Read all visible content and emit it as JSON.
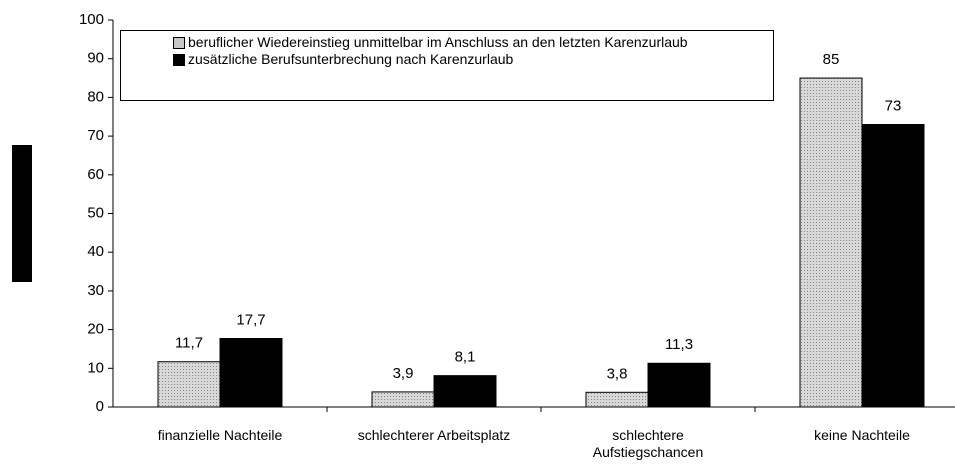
{
  "chart_data": {
    "type": "bar",
    "categories": [
      "finanzielle Nachteile",
      "schlechterer Arbeitsplatz",
      "schlechtere Aufstiegschancen",
      "keine Nachteile"
    ],
    "series": [
      {
        "name": "beruflicher Wiedereinstieg unmittelbar im Anschluss an den letzten Karenzurlaub",
        "color": "#c8c8c8",
        "values": [
          11.7,
          3.9,
          3.8,
          85
        ],
        "value_labels": [
          "11,7",
          "3,9",
          "3,8",
          "85"
        ]
      },
      {
        "name": "zusätzliche Berufsunterbrechung nach Karenzurlaub",
        "color": "#000000",
        "values": [
          17.7,
          8.1,
          11.3,
          73
        ],
        "value_labels": [
          "17,7",
          "8,1",
          "11,3",
          "73"
        ]
      }
    ],
    "ylim": [
      0,
      100
    ],
    "yticks": [
      0,
      10,
      20,
      30,
      40,
      50,
      60,
      70,
      80,
      90,
      100
    ],
    "grid": false,
    "legend": "top-left"
  }
}
